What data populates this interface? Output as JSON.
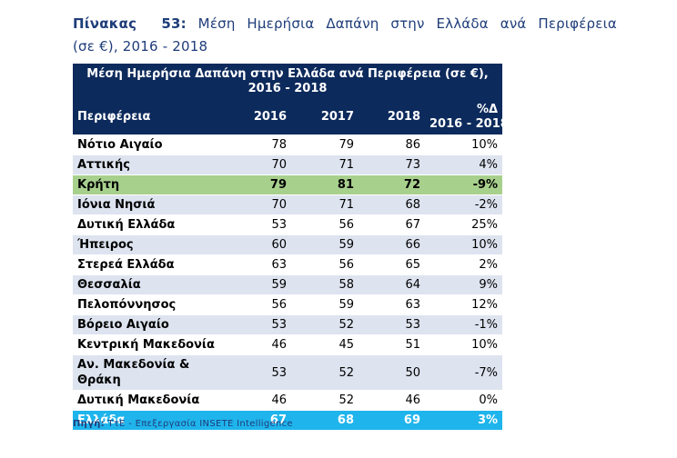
{
  "caption": {
    "label": "Πίνακας",
    "number": "53:",
    "words": [
      "Μέση",
      "Ημερήσια",
      "Δαπάνη",
      "στην",
      "Ελλάδα",
      "ανά",
      "Περιφέρεια"
    ],
    "line2": "(σε €), 2016 - 2018"
  },
  "table": {
    "title": "Μέση Ημερήσια Δαπάνη στην Ελλάδα ανά Περιφέρεια (σε €), 2016 - 2018",
    "headers": {
      "region": "Περιφέρεια",
      "y2016": "2016",
      "y2017": "2017",
      "y2018": "2018",
      "pct_line1": "%Δ",
      "pct_line2": "2016 - 2018"
    },
    "rows": [
      {
        "region": "Νότιο Αιγαίο",
        "v2016": "78",
        "v2017": "79",
        "v2018": "86",
        "pct": "10%"
      },
      {
        "region": "Αττικής",
        "v2016": "70",
        "v2017": "71",
        "v2018": "73",
        "pct": "4%"
      },
      {
        "region": "Κρήτη",
        "v2016": "79",
        "v2017": "81",
        "v2018": "72",
        "pct": "-9%"
      },
      {
        "region": "Ιόνια Νησιά",
        "v2016": "70",
        "v2017": "71",
        "v2018": "68",
        "pct": "-2%"
      },
      {
        "region": "Δυτική Ελλάδα",
        "v2016": "53",
        "v2017": "56",
        "v2018": "67",
        "pct": "25%"
      },
      {
        "region": "Ήπειρος",
        "v2016": "60",
        "v2017": "59",
        "v2018": "66",
        "pct": "10%"
      },
      {
        "region": "Στερεά Ελλάδα",
        "v2016": "63",
        "v2017": "56",
        "v2018": "65",
        "pct": "2%"
      },
      {
        "region": "Θεσσαλία",
        "v2016": "59",
        "v2017": "58",
        "v2018": "64",
        "pct": "9%"
      },
      {
        "region": "Πελοπόννησος",
        "v2016": "56",
        "v2017": "59",
        "v2018": "63",
        "pct": "12%"
      },
      {
        "region": "Βόρειο Αιγαίο",
        "v2016": "53",
        "v2017": "52",
        "v2018": "53",
        "pct": "-1%"
      },
      {
        "region": "Κεντρική Μακεδονία",
        "v2016": "46",
        "v2017": "45",
        "v2018": "51",
        "pct": "10%"
      },
      {
        "region": "Αν. Μακεδονία & Θράκη",
        "v2016": "53",
        "v2017": "52",
        "v2018": "50",
        "pct": "-7%"
      },
      {
        "region": "Δυτική Μακεδονία",
        "v2016": "46",
        "v2017": "52",
        "v2018": "46",
        "pct": "0%"
      }
    ],
    "total": {
      "region": "Ελλάδα",
      "v2016": "67",
      "v2017": "68",
      "v2018": "69",
      "pct": "3%"
    },
    "highlight_color": "#a8d08d",
    "header_color": "#0d2a5c",
    "total_color": "#1fb4ec"
  },
  "source": {
    "label": "Πηγή:",
    "text": "ΤτΕ - Επεξεργασία INSETE Intelligence"
  }
}
